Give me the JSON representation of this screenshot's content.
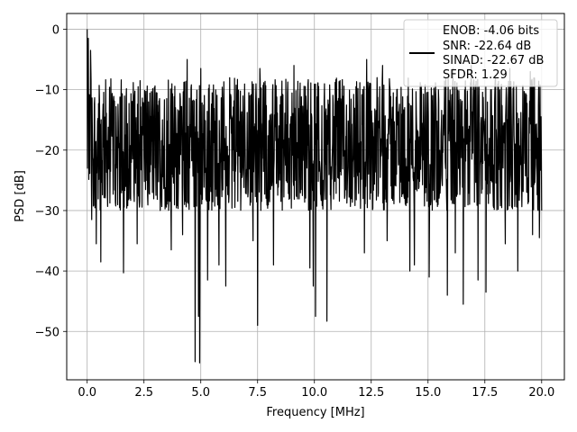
{
  "chart_data": {
    "type": "line",
    "xlabel": "Frequency [MHz]",
    "ylabel": "PSD [dB]",
    "xlim": [
      -0.9,
      21.0
    ],
    "ylim": [
      -58,
      2.6
    ],
    "xticks": [
      0.0,
      2.5,
      5.0,
      7.5,
      10.0,
      12.5,
      15.0,
      17.5,
      20.0
    ],
    "xtick_labels": [
      "0.0",
      "2.5",
      "5.0",
      "7.5",
      "10.0",
      "12.5",
      "15.0",
      "17.5",
      "20.0"
    ],
    "yticks": [
      0,
      -10,
      -20,
      -30,
      -40,
      -50
    ],
    "ytick_labels": [
      "0",
      "−10",
      "−20",
      "−30",
      "−40",
      "−50"
    ],
    "grid": true,
    "legend_position": "top-right",
    "legend_lines": [
      "ENOB: -4.06 bits",
      "SNR: -22.64 dB",
      "SINAD: -22.67 dB",
      "SFDR: 1.29"
    ],
    "series": [
      {
        "color": "#000000",
        "band_min": -30,
        "band_max": -8,
        "peak": {
          "x": 0.0,
          "y": 0.0
        },
        "deep_dips": [
          {
            "x": 0.2,
            "y": -31.5
          },
          {
            "x": 0.4,
            "y": -35.5
          },
          {
            "x": 0.6,
            "y": -38.5
          },
          {
            "x": 1.6,
            "y": -40.3
          },
          {
            "x": 2.2,
            "y": -35.5
          },
          {
            "x": 3.7,
            "y": -36.5
          },
          {
            "x": 4.2,
            "y": -34.0
          },
          {
            "x": 4.75,
            "y": -55.0
          },
          {
            "x": 4.95,
            "y": -55.2
          },
          {
            "x": 4.9,
            "y": -47.5
          },
          {
            "x": 5.3,
            "y": -41.5
          },
          {
            "x": 5.8,
            "y": -39.0
          },
          {
            "x": 6.1,
            "y": -42.5
          },
          {
            "x": 7.3,
            "y": -35.0
          },
          {
            "x": 7.5,
            "y": -49.0
          },
          {
            "x": 8.2,
            "y": -39.0
          },
          {
            "x": 9.8,
            "y": -39.5
          },
          {
            "x": 9.95,
            "y": -42.5
          },
          {
            "x": 10.05,
            "y": -47.5
          },
          {
            "x": 10.55,
            "y": -48.3
          },
          {
            "x": 12.2,
            "y": -37.0
          },
          {
            "x": 13.2,
            "y": -35.0
          },
          {
            "x": 14.2,
            "y": -40.0
          },
          {
            "x": 14.4,
            "y": -39.0
          },
          {
            "x": 15.05,
            "y": -41.0
          },
          {
            "x": 15.85,
            "y": -44.0
          },
          {
            "x": 16.2,
            "y": -37.0
          },
          {
            "x": 16.55,
            "y": -45.5
          },
          {
            "x": 17.2,
            "y": -41.5
          },
          {
            "x": 17.55,
            "y": -43.5
          },
          {
            "x": 18.4,
            "y": -35.5
          },
          {
            "x": 18.95,
            "y": -40.0
          },
          {
            "x": 19.6,
            "y": -34.0
          },
          {
            "x": 19.9,
            "y": -34.5
          }
        ],
        "high_spikes": [
          {
            "x": 0.05,
            "y": -1.5
          },
          {
            "x": 0.15,
            "y": -3.5
          },
          {
            "x": 4.4,
            "y": -5.0
          },
          {
            "x": 5.0,
            "y": -6.5
          },
          {
            "x": 7.6,
            "y": -6.5
          },
          {
            "x": 9.1,
            "y": -6.0
          },
          {
            "x": 12.3,
            "y": -5.0
          },
          {
            "x": 13.0,
            "y": -6.0
          },
          {
            "x": 16.1,
            "y": -6.5
          },
          {
            "x": 16.9,
            "y": -6.0
          },
          {
            "x": 18.6,
            "y": -6.5
          },
          {
            "x": 19.5,
            "y": -7.0
          }
        ]
      }
    ]
  }
}
